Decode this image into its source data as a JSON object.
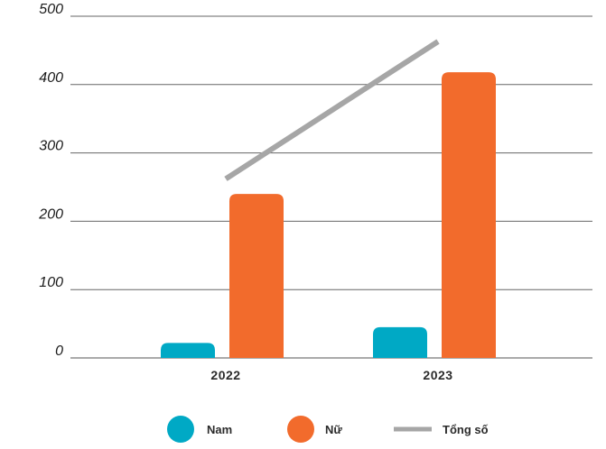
{
  "chart_data": {
    "type": "bar",
    "categories": [
      "2022",
      "2023"
    ],
    "series": [
      {
        "name": "Nam",
        "type": "bar",
        "values": [
          22,
          45
        ],
        "color": "#00A9C5"
      },
      {
        "name": "Nữ",
        "type": "bar",
        "values": [
          240,
          418
        ],
        "color": "#F26B2C"
      },
      {
        "name": "Tổng số",
        "type": "line",
        "values": [
          262,
          463
        ],
        "color": "#A6A6A6"
      }
    ],
    "yticks": [
      0,
      100,
      200,
      300,
      400,
      500
    ],
    "ylim": [
      0,
      500
    ],
    "title": "",
    "xlabel": "",
    "ylabel": "",
    "grid": true,
    "legend": "bottom"
  }
}
